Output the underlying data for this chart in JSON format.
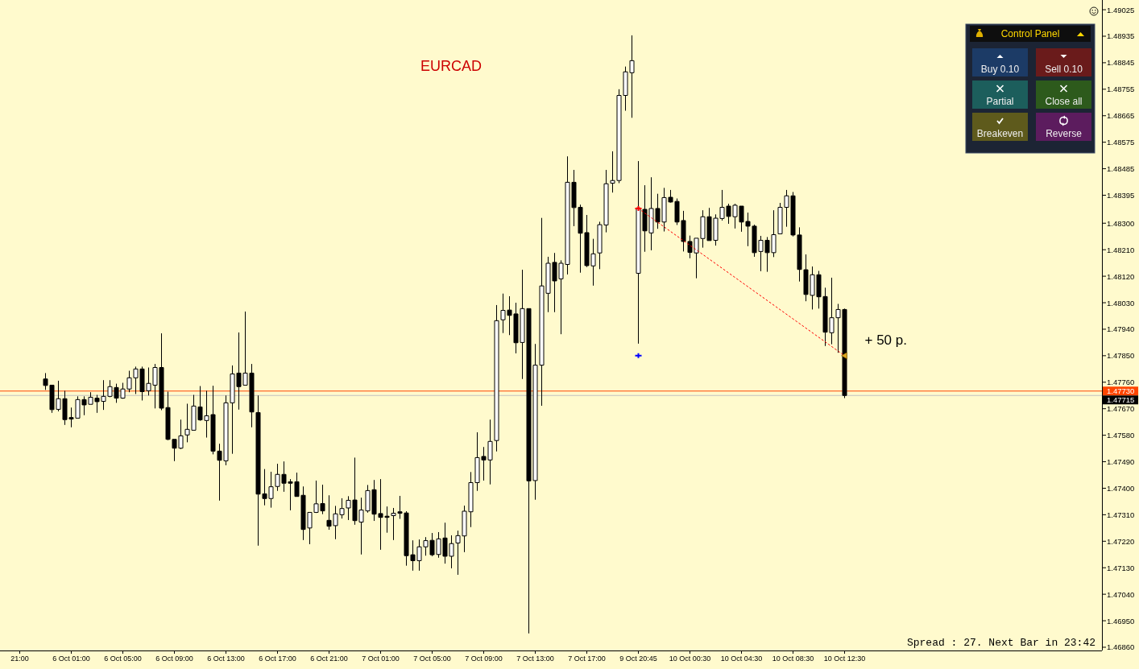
{
  "chart_data": [
    {
      "type": "candlestick",
      "title": "EURCAD",
      "categories": [
        "21:00",
        null,
        null,
        null,
        null,
        null,
        null,
        null,
        "6 Oct 01:00",
        null,
        null,
        null,
        null,
        null,
        null,
        null,
        "6 Oct 05:00",
        null,
        null,
        null,
        null,
        null,
        null,
        null,
        "6 Oct 09:00",
        null,
        null,
        null,
        null,
        null,
        null,
        null,
        "6 Oct 13:00",
        null,
        null,
        null,
        null,
        null,
        null,
        null,
        "6 Oct 17:00",
        null,
        null,
        null,
        null,
        null,
        null,
        null,
        "6 Oct 21:00",
        null,
        null,
        null,
        null,
        null,
        null,
        null,
        "7 Oct 01:00",
        null,
        null,
        null,
        null,
        null,
        null,
        null,
        "7 Oct 05:00",
        null,
        null,
        null,
        null,
        null,
        null,
        null,
        "7 Oct 09:00",
        null,
        null,
        null,
        null,
        null,
        null,
        null,
        "7 Oct 13:00",
        null,
        null,
        null,
        null,
        null,
        null,
        null,
        "7 Oct 17:00",
        null,
        null,
        null,
        null,
        null,
        null,
        null,
        "9 Oct 20:45",
        null,
        null,
        null,
        null,
        null,
        null,
        null,
        "10 Oct 00:30",
        null,
        null,
        null,
        null,
        null,
        null,
        null,
        "10 Oct 04:30",
        null,
        null,
        null,
        null,
        null,
        null,
        null,
        "10 Oct 08:30",
        null,
        null,
        null,
        null,
        null,
        null,
        null,
        "10 Oct 12:30",
        null,
        null,
        null,
        null,
        null,
        null,
        null,
        null,
        null,
        null,
        null,
        null,
        null,
        null,
        null,
        null,
        null,
        null,
        null,
        null,
        null,
        null,
        null,
        null,
        null,
        null,
        null,
        null,
        null,
        null,
        null,
        null,
        null,
        null,
        null,
        null,
        null,
        null,
        null
      ],
      "ohlc": [
        null,
        null,
        null,
        null,
        [
          1.47771,
          1.47791,
          1.47734,
          1.47749
        ],
        [
          1.4775,
          1.4775,
          1.47656,
          1.47667
        ],
        [
          1.47668,
          1.47765,
          1.47661,
          1.47704
        ],
        [
          1.47704,
          1.47731,
          1.47615,
          1.47633
        ],
        [
          1.4764,
          1.47674,
          1.47607,
          1.47635
        ],
        [
          1.47638,
          1.47712,
          1.47638,
          1.47701
        ],
        [
          1.47701,
          1.47712,
          1.47648,
          1.47683
        ],
        [
          1.47685,
          1.47726,
          1.47685,
          1.47709
        ],
        [
          1.47706,
          1.47717,
          1.47656,
          1.47694
        ],
        [
          1.47695,
          1.47767,
          1.47666,
          1.47712
        ],
        [
          1.47712,
          1.47767,
          1.47709,
          1.47745
        ],
        [
          1.47742,
          1.47755,
          1.4769,
          1.47706
        ],
        [
          1.47706,
          1.47758,
          1.47704,
          1.47737
        ],
        [
          1.47737,
          1.47799,
          1.47726,
          1.47775
        ],
        [
          1.47775,
          1.47813,
          1.4772,
          1.47805
        ],
        [
          1.47805,
          1.47813,
          1.47698,
          1.47728
        ],
        [
          1.47731,
          1.4781,
          1.47715,
          1.47756
        ],
        [
          1.4775,
          1.47822,
          1.47671,
          1.4781
        ],
        [
          1.4781,
          1.47926,
          1.47665,
          1.47672
        ],
        [
          1.47674,
          1.47728,
          1.47563,
          1.47566
        ],
        [
          1.47566,
          1.47566,
          1.47492,
          1.47536
        ],
        [
          1.47536,
          1.47633,
          1.47533,
          1.47578
        ],
        [
          1.47581,
          1.47687,
          1.47556,
          1.476
        ],
        [
          1.47597,
          1.47717,
          1.47597,
          1.47679
        ],
        [
          1.47676,
          1.47747,
          1.47629,
          1.47632
        ],
        [
          1.4763,
          1.47731,
          1.47572,
          1.47646
        ],
        [
          1.4765,
          1.47748,
          1.47515,
          1.47526
        ],
        [
          1.47526,
          1.47551,
          1.47358,
          1.47495
        ],
        [
          1.47493,
          1.47715,
          1.47478,
          1.4769
        ],
        [
          1.4769,
          1.47817,
          1.47517,
          1.47788
        ],
        [
          1.47791,
          1.47929,
          1.47667,
          1.47745
        ],
        [
          1.4775,
          1.48,
          1.4775,
          1.47791
        ],
        [
          1.47791,
          1.47822,
          1.47607,
          1.47659
        ],
        [
          1.47657,
          1.47715,
          1.47205,
          1.4738
        ],
        [
          1.47381,
          1.47465,
          1.47342,
          1.47365
        ],
        [
          1.47365,
          1.47456,
          1.47334,
          1.47405
        ],
        [
          1.47406,
          1.47483,
          1.47391,
          1.47447
        ],
        [
          1.47447,
          1.47491,
          1.47388,
          1.47417
        ],
        [
          1.47422,
          1.47431,
          1.47325,
          1.47417
        ],
        [
          1.47422,
          1.47453,
          1.47372,
          1.47372
        ],
        [
          1.47376,
          1.47406,
          1.47224,
          1.4726
        ],
        [
          1.47265,
          1.47318,
          1.4721,
          1.47318
        ],
        [
          1.47318,
          1.47426,
          1.47316,
          1.47347
        ],
        [
          1.47348,
          1.47412,
          1.47312,
          1.47323
        ],
        [
          1.47291,
          1.47376,
          1.47259,
          1.47271
        ],
        [
          1.47273,
          1.4734,
          1.47227,
          1.47313
        ],
        [
          1.4731,
          1.47366,
          1.47297,
          1.47331
        ],
        [
          1.47333,
          1.47373,
          1.47292,
          1.47359
        ],
        [
          1.4736,
          1.47504,
          1.47276,
          1.4729
        ],
        [
          1.47285,
          1.47368,
          1.47175,
          1.47326
        ],
        [
          1.47323,
          1.47411,
          1.47317,
          1.47392
        ],
        [
          1.47395,
          1.47428,
          1.47289,
          1.47312
        ],
        [
          1.47314,
          1.47431,
          1.47191,
          1.47301
        ],
        [
          1.47305,
          1.47338,
          1.47249,
          1.47301
        ],
        [
          1.47307,
          1.47333,
          1.47224,
          1.47315
        ],
        [
          1.4732,
          1.47374,
          1.47296,
          1.47315
        ],
        [
          1.47316,
          1.47322,
          1.47137,
          1.47171
        ],
        [
          1.47174,
          1.47223,
          1.4712,
          1.47154
        ],
        [
          1.47154,
          1.47226,
          1.4712,
          1.47201
        ],
        [
          1.47201,
          1.47234,
          1.47171,
          1.47222
        ],
        [
          1.47223,
          1.47248,
          1.47169,
          1.47174
        ],
        [
          1.47175,
          1.47251,
          1.47164,
          1.47228
        ],
        [
          1.47231,
          1.47283,
          1.47144,
          1.47169
        ],
        [
          1.47169,
          1.4724,
          1.47128,
          1.47212
        ],
        [
          1.47214,
          1.47256,
          1.47106,
          1.47239
        ],
        [
          1.47238,
          1.47341,
          1.47183,
          1.47322
        ],
        [
          1.4732,
          1.47455,
          1.47268,
          1.47419
        ],
        [
          1.47419,
          1.4759,
          1.47391,
          1.47504
        ],
        [
          1.47508,
          1.4754,
          1.47426,
          1.47496
        ],
        [
          1.47496,
          1.47633,
          1.47413,
          1.47559
        ],
        [
          1.47562,
          1.48022,
          1.47525,
          1.47969
        ],
        [
          1.47972,
          1.48061,
          1.47927,
          1.48004
        ],
        [
          1.48005,
          1.48052,
          1.4792,
          1.47987
        ],
        [
          1.47992,
          1.4803,
          1.47858,
          1.47894
        ],
        [
          1.47895,
          1.48142,
          1.47771,
          1.4801
        ],
        [
          1.4801,
          1.4801,
          1.46907,
          1.47425
        ],
        [
          1.47426,
          1.4789,
          1.47361,
          1.47818
        ],
        [
          1.47818,
          1.48318,
          1.4768,
          1.48087
        ],
        [
          1.48062,
          1.48186,
          1.47998,
          1.48164
        ],
        [
          1.48167,
          1.48199,
          1.47998,
          1.48104
        ],
        [
          1.48111,
          1.48174,
          1.47923,
          1.48164
        ],
        [
          1.4816,
          1.48527,
          1.48126,
          1.48439
        ],
        [
          1.48439,
          1.48481,
          1.4829,
          1.48353
        ],
        [
          1.48354,
          1.48363,
          1.48132,
          1.48266
        ],
        [
          1.48268,
          1.48328,
          1.48151,
          1.48156
        ],
        [
          1.48155,
          1.48247,
          1.48088,
          1.48196
        ],
        [
          1.48199,
          1.48305,
          1.48144,
          1.48295
        ],
        [
          1.48294,
          1.48481,
          1.48269,
          1.48434
        ],
        [
          1.48436,
          1.48544,
          1.48404,
          1.48445
        ],
        [
          1.48445,
          1.48755,
          1.48436,
          1.48734
        ],
        [
          1.48734,
          1.48832,
          1.48682,
          1.48814
        ],
        [
          1.48811,
          1.48938,
          1.48658,
          1.48852
        ],
        [
          1.4813,
          1.48511,
          1.47891,
          1.48352
        ],
        [
          1.48347,
          1.48429,
          1.48203,
          1.48274
        ],
        [
          1.48267,
          1.48456,
          1.48208,
          1.4835
        ],
        [
          1.4835,
          1.484,
          1.48281,
          1.48304
        ],
        [
          1.48304,
          1.4842,
          1.48272,
          1.48387
        ],
        [
          1.48388,
          1.48413,
          1.4837,
          1.48372
        ],
        [
          1.48374,
          1.48384,
          1.48294,
          1.48304
        ],
        [
          1.48309,
          1.48342,
          1.48204,
          1.48238
        ],
        [
          1.48238,
          1.48258,
          1.48181,
          1.48201
        ],
        [
          1.48199,
          1.48249,
          1.48113,
          1.48249
        ],
        [
          1.48248,
          1.48344,
          1.48217,
          1.48322
        ],
        [
          1.48322,
          1.48352,
          1.48241,
          1.48241
        ],
        [
          1.48242,
          1.4833,
          1.48224,
          1.48317
        ],
        [
          1.48316,
          1.48413,
          1.48309,
          1.48354
        ],
        [
          1.48358,
          1.48366,
          1.48298,
          1.48323
        ],
        [
          1.48322,
          1.48366,
          1.48282,
          1.48361
        ],
        [
          1.48358,
          1.48358,
          1.48271,
          1.48304
        ],
        [
          1.48306,
          1.48336,
          1.48222,
          1.4829
        ],
        [
          1.4829,
          1.48295,
          1.48186,
          1.482
        ],
        [
          1.48204,
          1.48257,
          1.48137,
          1.48242
        ],
        [
          1.48242,
          1.48253,
          1.48135,
          1.482
        ],
        [
          1.482,
          1.48344,
          1.48185,
          1.48261
        ],
        [
          1.48264,
          1.48369,
          1.48264,
          1.48354
        ],
        [
          1.48354,
          1.48413,
          1.48288,
          1.48393
        ],
        [
          1.48393,
          1.48406,
          1.48255,
          1.4826
        ],
        [
          1.4826,
          1.48286,
          1.48102,
          1.48143
        ],
        [
          1.48142,
          1.48194,
          1.48035,
          1.48058
        ],
        [
          1.48055,
          1.48153,
          1.48007,
          1.48125
        ],
        [
          1.48125,
          1.48138,
          1.4801,
          1.4805
        ],
        [
          1.48051,
          1.48081,
          1.47883,
          1.4793
        ],
        [
          1.47928,
          1.48115,
          1.47889,
          1.47979
        ],
        [
          1.47979,
          1.48026,
          1.4786,
          1.48007
        ],
        [
          1.48007,
          1.4801,
          1.47706,
          1.47715
        ],
        null,
        null,
        null,
        null,
        null,
        null,
        null,
        null,
        null,
        null,
        null,
        null,
        null,
        null,
        null,
        null,
        null,
        null,
        null,
        null,
        null,
        null,
        null,
        null,
        null,
        null,
        null,
        null,
        null,
        null,
        null,
        null,
        null,
        null,
        null,
        null,
        null,
        null,
        null
      ],
      "series": [
        {
          "type": "line",
          "x": [
            "9 Oct 20:45",
            "10 Oct 12:30"
          ],
          "values": [
            1.4835,
            1.4785
          ],
          "color": "#ff0000",
          "line_style": "dotted"
        },
        {
          "type": "scatter",
          "x": [
            "9 Oct 20:45"
          ],
          "values": [
            1.4835
          ],
          "color": "#ff0000",
          "marker": "cross"
        },
        {
          "type": "scatter",
          "x": [
            "9 Oct 20:45"
          ],
          "values": [
            1.4785
          ],
          "color": "#0000ff",
          "marker": "cross"
        },
        {
          "type": "scatter",
          "x": [
            "10 Oct 12:30"
          ],
          "values": [
            1.4785
          ],
          "color": "#daa520",
          "marker": "triangle"
        }
      ],
      "ylim": [
        1.46849,
        1.49058
      ],
      "yticks": [
        1.49025,
        1.48935,
        1.48845,
        1.48755,
        1.48665,
        1.48575,
        1.48485,
        1.48395,
        {
          "value": 1.483,
          "label": "1.48300"
        },
        {
          "value": 1.4821,
          "label": "1.48210"
        },
        {
          "value": 1.4812,
          "label": "1.48120"
        },
        {
          "value": 1.4803,
          "label": "1.48030"
        },
        {
          "value": 1.4794,
          "label": "1.47940"
        },
        {
          "value": 1.4785,
          "label": "1.47850"
        },
        {
          "value": 1.4776,
          "label": "1.47760"
        },
        {
          "value": 1.4767,
          "label": "1.47670"
        },
        {
          "value": 1.4758,
          "label": "1.47580"
        },
        {
          "value": 1.4749,
          "label": "1.47490"
        },
        {
          "value": 1.474,
          "label": "1.47400"
        },
        {
          "value": 1.4731,
          "label": "1.47310"
        },
        {
          "value": 1.4722,
          "label": "1.47220"
        },
        {
          "value": 1.4713,
          "label": "1.47130"
        },
        {
          "value": 1.4704,
          "label": "1.47040"
        },
        {
          "value": 1.4695,
          "label": "1.46950"
        },
        {
          "value": 1.4686,
          "label": "1.46860"
        }
      ],
      "ref_lines": [
        {
          "axis": "y",
          "value": 1.4773,
          "label": "1.47730",
          "color": "#ff4500"
        },
        {
          "axis": "y",
          "value": 1.47715,
          "label": "1.47715",
          "color": "#c0c0c0"
        }
      ],
      "annotations": [
        {
          "text": "+ 50 p.",
          "x": "10 Oct 12:30",
          "y": 1.4785
        },
        "Spread : 27. Next Bar in 23:42"
      ]
    },
    {
      "type": "other",
      "title": "Control Panel",
      "annotations": [
        "Buy 0.10",
        "Sell 0.10",
        "Partial",
        "Close all",
        "Breakeven",
        "Reverse"
      ],
      "colors": [
        "#1c3b66",
        "#6a1b1b",
        "#1c5e5c",
        "#2d5a1c",
        "#5e5a1c",
        "#5c1c5e"
      ]
    }
  ]
}
